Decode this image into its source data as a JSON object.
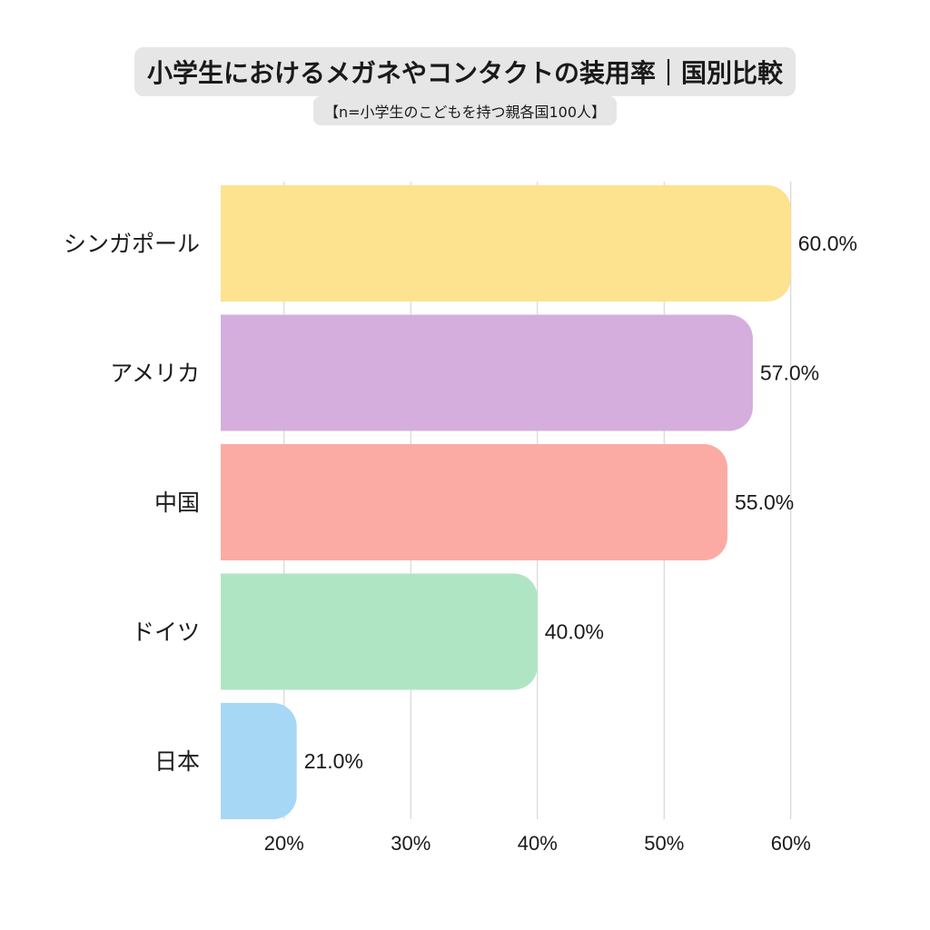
{
  "chart_data": {
    "type": "bar",
    "orientation": "horizontal",
    "title": "小学生におけるメガネやコンタクトの装用率｜国別比較",
    "subtitle": "【n=小学生のこどもを持つ親各国100人】",
    "categories": [
      "シンガポール",
      "アメリカ",
      "中国",
      "ドイツ",
      "日本"
    ],
    "values": [
      60.0,
      57.0,
      55.0,
      40.0,
      21.0
    ],
    "value_labels": [
      "60.0%",
      "57.0%",
      "55.0%",
      "40.0%",
      "21.0%"
    ],
    "colors": [
      "#fde28f",
      "#d5aedd",
      "#fcaba4",
      "#b0e5c4",
      "#a6d7f5"
    ],
    "xlim": [
      15,
      60
    ],
    "xticks": [
      20,
      30,
      40,
      50,
      60
    ],
    "xtick_labels": [
      "20%",
      "30%",
      "40%",
      "50%",
      "60%"
    ],
    "grid": true,
    "xlabel": "",
    "ylabel": ""
  }
}
